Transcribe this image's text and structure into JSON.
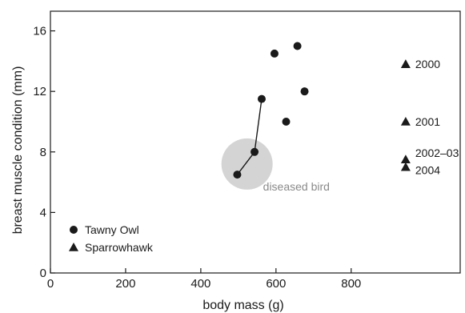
{
  "chart_data": {
    "type": "scatter",
    "xlabel": "body mass (g)",
    "ylabel": "breast muscle condition (mm)",
    "xlim": [
      0,
      1090
    ],
    "ylim": [
      0,
      17.3
    ],
    "x_ticks": [
      0,
      200,
      400,
      600,
      800
    ],
    "y_ticks": [
      0,
      4,
      8,
      12,
      16
    ],
    "grid": false,
    "legend_position": "bottom-left",
    "series": [
      {
        "name": "Tawny Owl",
        "marker": "circle",
        "points": [
          {
            "x": 497,
            "y": 6.5
          },
          {
            "x": 543,
            "y": 8.0
          },
          {
            "x": 562,
            "y": 11.5
          },
          {
            "x": 596,
            "y": 14.5
          },
          {
            "x": 627,
            "y": 10.0
          },
          {
            "x": 657,
            "y": 15.0
          },
          {
            "x": 676,
            "y": 12.0
          }
        ],
        "connected_path": [
          0,
          1,
          2
        ]
      },
      {
        "name": "Sparrowhawk",
        "marker": "triangle",
        "points": [
          {
            "x": 945,
            "y": 13.8,
            "label": "2000"
          },
          {
            "x": 945,
            "y": 10.0,
            "label": "2001"
          },
          {
            "x": 945,
            "y": 7.5,
            "label": "2002–03"
          },
          {
            "x": 945,
            "y": 7.0,
            "label": "2004"
          }
        ]
      }
    ],
    "highlight": {
      "label": "diseased bird",
      "x": 523,
      "y": 7.2,
      "color": "#d4d4d4"
    }
  },
  "colors": {
    "marker": "#1a1a1a",
    "highlight": "#d4d4d4",
    "highlight_text": "#8a8a8a"
  }
}
